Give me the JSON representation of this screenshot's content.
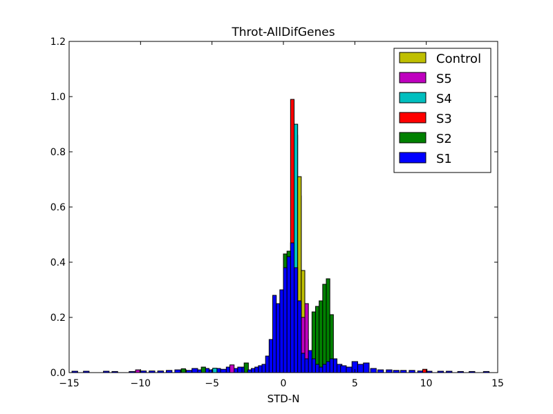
{
  "chart_data": {
    "type": "bar",
    "subtype": "stacked step histogram",
    "title": "Throt-AllDifGenes",
    "xlabel": "STD-N",
    "ylabel": "",
    "xlim": [
      -15,
      15
    ],
    "ylim": [
      0,
      1.2
    ],
    "xticks": [
      -15,
      -10,
      -5,
      0,
      5,
      10,
      15
    ],
    "yticks": [
      0.0,
      0.2,
      0.4,
      0.6,
      0.8,
      1.0,
      1.2
    ],
    "xtick_labels": [
      "−15",
      "−10",
      "−5",
      "0",
      "5",
      "10",
      "15"
    ],
    "ytick_labels": [
      "0.0",
      "0.2",
      "0.4",
      "0.6",
      "0.8",
      "1.0",
      "1.2"
    ],
    "grid": false,
    "legend_position": "top-right",
    "bin_edges": [
      -2.5,
      -2.25,
      -2.0,
      -1.75,
      -1.5,
      -1.25,
      -1.0,
      -0.75,
      -0.5,
      -0.25,
      0.0,
      0.25,
      0.5,
      0.75,
      1.0,
      1.25,
      1.5,
      1.75,
      2.0,
      2.25,
      2.5,
      2.75,
      3.0,
      3.25,
      3.5,
      3.75
    ],
    "series": [
      {
        "name": "S1",
        "color": "#0000ff",
        "values": [
          0.01,
          0.015,
          0.02,
          0.025,
          0.03,
          0.06,
          0.12,
          0.28,
          0.25,
          0.3,
          0.38,
          0.42,
          0.47,
          0.38,
          0.26,
          0.07,
          0.05,
          0.08,
          0.05,
          0.03,
          0.02,
          0.03,
          0.04,
          0.05,
          0.05
        ]
      },
      {
        "name": "S2",
        "color": "#008000",
        "values": [
          0.0,
          0.0,
          0.0,
          0.0,
          0.0,
          0.0,
          0.0,
          0.0,
          0.0,
          0.06,
          0.43,
          0.44,
          0.0,
          0.0,
          0.0,
          0.0,
          0.0,
          0.06,
          0.22,
          0.24,
          0.26,
          0.32,
          0.34,
          0.21,
          0.0
        ]
      },
      {
        "name": "S3",
        "color": "#ff0000",
        "values": [
          0.0,
          0.0,
          0.0,
          0.0,
          0.0,
          0.0,
          0.0,
          0.0,
          0.0,
          0.0,
          0.0,
          0.0,
          0.99,
          0.86,
          0.64,
          0.0,
          0.0,
          0.0,
          0.0,
          0.0,
          0.0,
          0.0,
          0.0,
          0.0,
          0.0
        ]
      },
      {
        "name": "S4",
        "color": "#00bfbf",
        "values": [
          0.0,
          0.0,
          0.0,
          0.0,
          0.0,
          0.0,
          0.0,
          0.0,
          0.0,
          0.0,
          0.0,
          0.0,
          0.0,
          0.9,
          0.0,
          0.11,
          0.12,
          0.0,
          0.0,
          0.0,
          0.0,
          0.0,
          0.0,
          0.0,
          0.0
        ]
      },
      {
        "name": "S5",
        "color": "#bf00bf",
        "values": [
          0.0,
          0.0,
          0.0,
          0.0,
          0.0,
          0.0,
          0.0,
          0.18,
          0.0,
          0.0,
          0.0,
          0.0,
          0.0,
          0.0,
          0.0,
          0.2,
          0.25,
          0.0,
          0.0,
          0.0,
          0.0,
          0.0,
          0.0,
          0.0,
          0.0
        ]
      },
      {
        "name": "Control",
        "color": "#bfbf00",
        "values": [
          0.0,
          0.0,
          0.0,
          0.0,
          0.0,
          0.0,
          0.0,
          0.0,
          0.0,
          0.0,
          0.0,
          0.0,
          0.0,
          0.0,
          0.71,
          0.37,
          0.0,
          0.0,
          0.0,
          0.0,
          0.0,
          0.0,
          0.0,
          0.0,
          0.0
        ]
      }
    ],
    "tail_bins": {
      "x": [
        -14.6,
        -13.8,
        -12.4,
        -11.8,
        -10.6,
        -9.8,
        -9.2,
        -8.6,
        -8.0,
        -7.4,
        -7.0,
        -6.6,
        -6.2,
        -5.8,
        -5.4,
        -5.0,
        -4.6,
        -4.2,
        -3.8,
        -3.4,
        -3.0,
        -2.7,
        3.9,
        4.2,
        4.6,
        5.0,
        5.4,
        5.8,
        6.3,
        6.8,
        7.4,
        7.9,
        8.4,
        9.0,
        9.6,
        10.2,
        11.0,
        11.6,
        12.4,
        13.2,
        14.2
      ],
      "values": [
        0.005,
        0.005,
        0.005,
        0.004,
        0.004,
        0.006,
        0.006,
        0.006,
        0.008,
        0.01,
        0.01,
        0.008,
        0.015,
        0.01,
        0.015,
        0.01,
        0.015,
        0.012,
        0.02,
        0.015,
        0.02,
        0.02,
        0.03,
        0.025,
        0.02,
        0.04,
        0.03,
        0.035,
        0.015,
        0.01,
        0.01,
        0.008,
        0.008,
        0.008,
        0.006,
        0.005,
        0.005,
        0.005,
        0.004,
        0.004,
        0.004
      ],
      "width": 0.4,
      "color": "#0000ff"
    },
    "tail_accents": {
      "x": [
        -10.2,
        -7.0,
        -5.6,
        -4.8,
        -3.6,
        -2.6,
        9.9
      ],
      "values": [
        0.01,
        0.014,
        0.02,
        0.016,
        0.028,
        0.035,
        0.012
      ],
      "width": 0.3,
      "colors": [
        "#bf00bf",
        "#008000",
        "#008000",
        "#00bfbf",
        "#bf00bf",
        "#008000",
        "#ff0000"
      ]
    }
  },
  "legend": {
    "items": [
      {
        "label": "Control",
        "color": "#bfbf00"
      },
      {
        "label": "S5",
        "color": "#bf00bf"
      },
      {
        "label": "S4",
        "color": "#00bfbf"
      },
      {
        "label": "S3",
        "color": "#ff0000"
      },
      {
        "label": "S2",
        "color": "#008000"
      },
      {
        "label": "S1",
        "color": "#0000ff"
      }
    ]
  }
}
